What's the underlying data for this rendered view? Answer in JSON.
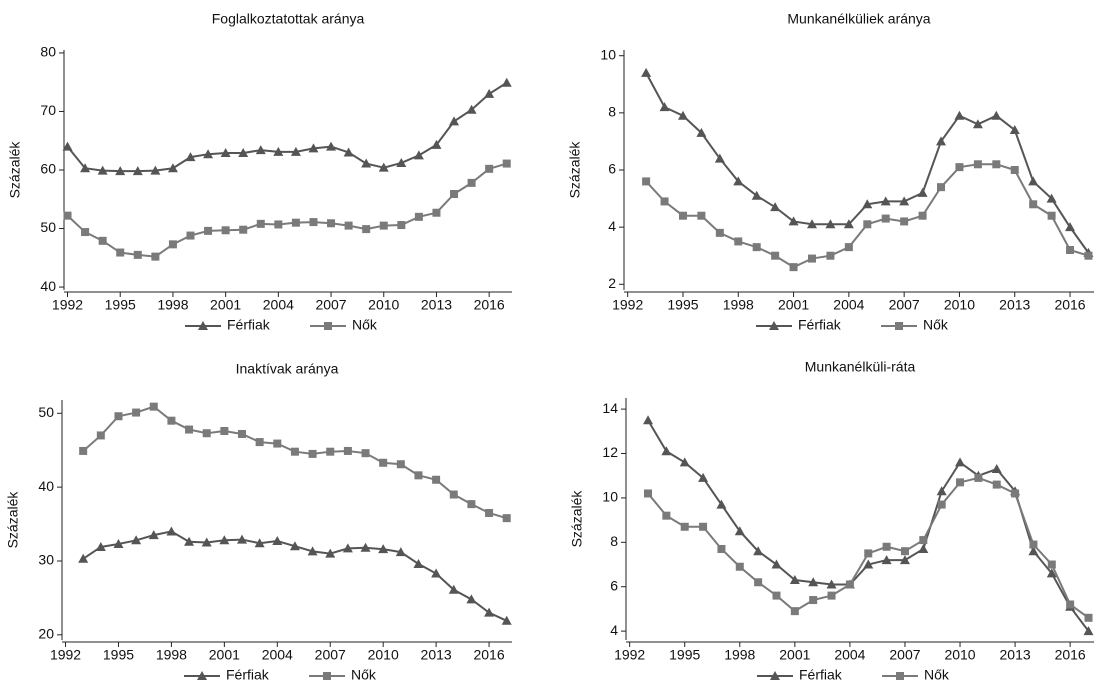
{
  "chart_data": [
    {
      "type": "line",
      "title": "Foglalkoztatottak aránya",
      "y_label": "Százalék",
      "x": [
        1992,
        1993,
        1994,
        1995,
        1996,
        1997,
        1998,
        1999,
        2000,
        2001,
        2002,
        2003,
        2004,
        2005,
        2006,
        2007,
        2008,
        2009,
        2010,
        2011,
        2012,
        2013,
        2014,
        2015,
        2016,
        2017
      ],
      "series": [
        {
          "name": "Férfiak",
          "color": "#555555",
          "marker": "triangle",
          "values": [
            64.0,
            60.3,
            59.9,
            59.8,
            59.8,
            59.9,
            60.3,
            62.2,
            62.7,
            62.9,
            62.9,
            63.4,
            63.1,
            63.1,
            63.7,
            64.0,
            63.0,
            61.1,
            60.4,
            61.2,
            62.5,
            64.3,
            68.3,
            70.3,
            73.0,
            74.9
          ]
        },
        {
          "name": "Nők",
          "color": "#7a7a7a",
          "marker": "square",
          "values": [
            52.2,
            49.4,
            47.9,
            45.9,
            45.5,
            45.2,
            47.3,
            48.8,
            49.6,
            49.7,
            49.8,
            50.8,
            50.7,
            51.0,
            51.1,
            50.9,
            50.5,
            49.9,
            50.5,
            50.6,
            52.0,
            52.7,
            55.9,
            57.8,
            60.2,
            61.1
          ]
        }
      ],
      "xlim": [
        1991.8,
        2017.3
      ],
      "ylim": [
        39.5,
        80.5
      ],
      "xticks": [
        1992,
        1995,
        1998,
        2001,
        2004,
        2007,
        2010,
        2013,
        2016
      ],
      "yticks": [
        40,
        50,
        60,
        70,
        80
      ]
    },
    {
      "type": "line",
      "title": "Munkanélküliek aránya",
      "y_label": "Százalék",
      "x": [
        1993,
        1994,
        1995,
        1996,
        1997,
        1998,
        1999,
        2000,
        2001,
        2002,
        2003,
        2004,
        2005,
        2006,
        2007,
        2008,
        2009,
        2010,
        2011,
        2012,
        2013,
        2014,
        2015,
        2016,
        2017
      ],
      "series": [
        {
          "name": "Férfiak",
          "color": "#555555",
          "marker": "triangle",
          "values": [
            9.4,
            8.2,
            7.9,
            7.3,
            6.4,
            5.6,
            5.1,
            4.7,
            4.2,
            4.1,
            4.1,
            4.1,
            4.8,
            4.9,
            4.9,
            5.2,
            7.0,
            7.9,
            7.6,
            7.9,
            7.4,
            5.6,
            5.0,
            4.0,
            3.1
          ]
        },
        {
          "name": "Nők",
          "color": "#7a7a7a",
          "marker": "square",
          "values": [
            5.6,
            4.9,
            4.4,
            4.4,
            3.8,
            3.5,
            3.3,
            3.0,
            2.6,
            2.9,
            3.0,
            3.3,
            4.1,
            4.3,
            4.2,
            4.4,
            5.4,
            6.1,
            6.2,
            6.2,
            6.0,
            4.8,
            4.4,
            3.2,
            3.0
          ]
        }
      ],
      "xlim": [
        1991.8,
        2017.3
      ],
      "ylim": [
        1.8,
        10.2
      ],
      "xticks": [
        1992,
        1995,
        1998,
        2001,
        2004,
        2007,
        2010,
        2013,
        2016
      ],
      "yticks": [
        2,
        4,
        6,
        8,
        10
      ]
    },
    {
      "type": "line",
      "title": "Inaktívak aránya",
      "y_label": "Százalék",
      "x": [
        1993,
        1994,
        1995,
        1996,
        1997,
        1998,
        1999,
        2000,
        2001,
        2002,
        2003,
        2004,
        2005,
        2006,
        2007,
        2008,
        2009,
        2010,
        2011,
        2012,
        2013,
        2014,
        2015,
        2016,
        2017
      ],
      "series": [
        {
          "name": "Férfiak",
          "color": "#555555",
          "marker": "triangle",
          "values": [
            30.3,
            31.9,
            32.3,
            32.8,
            33.5,
            34.0,
            32.6,
            32.5,
            32.8,
            32.9,
            32.4,
            32.7,
            32.0,
            31.3,
            31.0,
            31.7,
            31.8,
            31.6,
            31.2,
            29.6,
            28.3,
            26.1,
            24.8,
            23.0,
            21.9
          ]
        },
        {
          "name": "Nők",
          "color": "#7a7a7a",
          "marker": "square",
          "values": [
            44.9,
            47.0,
            49.6,
            50.1,
            50.9,
            49.0,
            47.8,
            47.3,
            47.6,
            47.2,
            46.1,
            45.9,
            44.8,
            44.5,
            44.8,
            44.9,
            44.6,
            43.3,
            43.1,
            41.6,
            41.0,
            39.0,
            37.7,
            36.5,
            35.8
          ]
        }
      ],
      "xlim": [
        1991.8,
        2017.3
      ],
      "ylim": [
        19.3,
        51.8
      ],
      "xticks": [
        1992,
        1995,
        1998,
        2001,
        2004,
        2007,
        2010,
        2013,
        2016
      ],
      "yticks": [
        20,
        30,
        40,
        50
      ]
    },
    {
      "type": "line",
      "title": "Munkanélküli-ráta",
      "y_label": "Százalék",
      "x": [
        1993,
        1994,
        1995,
        1996,
        1997,
        1998,
        1999,
        2000,
        2001,
        2002,
        2003,
        2004,
        2005,
        2006,
        2007,
        2008,
        2009,
        2010,
        2011,
        2012,
        2013,
        2014,
        2015,
        2016,
        2017
      ],
      "series": [
        {
          "name": "Férfiak",
          "color": "#555555",
          "marker": "triangle",
          "values": [
            13.5,
            12.1,
            11.6,
            10.9,
            9.7,
            8.5,
            7.6,
            7.0,
            6.3,
            6.2,
            6.1,
            6.1,
            7.0,
            7.2,
            7.2,
            7.7,
            10.3,
            11.6,
            11.0,
            11.3,
            10.3,
            7.6,
            6.6,
            5.1,
            4.0
          ]
        },
        {
          "name": "Nők",
          "color": "#7a7a7a",
          "marker": "square",
          "values": [
            10.2,
            9.2,
            8.7,
            8.7,
            7.7,
            6.9,
            6.2,
            5.6,
            4.9,
            5.4,
            5.6,
            6.1,
            7.5,
            7.8,
            7.6,
            8.1,
            9.7,
            10.7,
            10.9,
            10.6,
            10.2,
            7.9,
            7.0,
            5.2,
            4.6
          ]
        }
      ],
      "xlim": [
        1991.8,
        2017.3
      ],
      "ylim": [
        3.6,
        14.5
      ],
      "xticks": [
        1992,
        1995,
        1998,
        2001,
        2004,
        2007,
        2010,
        2013,
        2016
      ],
      "yticks": [
        4,
        6,
        8,
        10,
        12,
        14
      ]
    }
  ]
}
